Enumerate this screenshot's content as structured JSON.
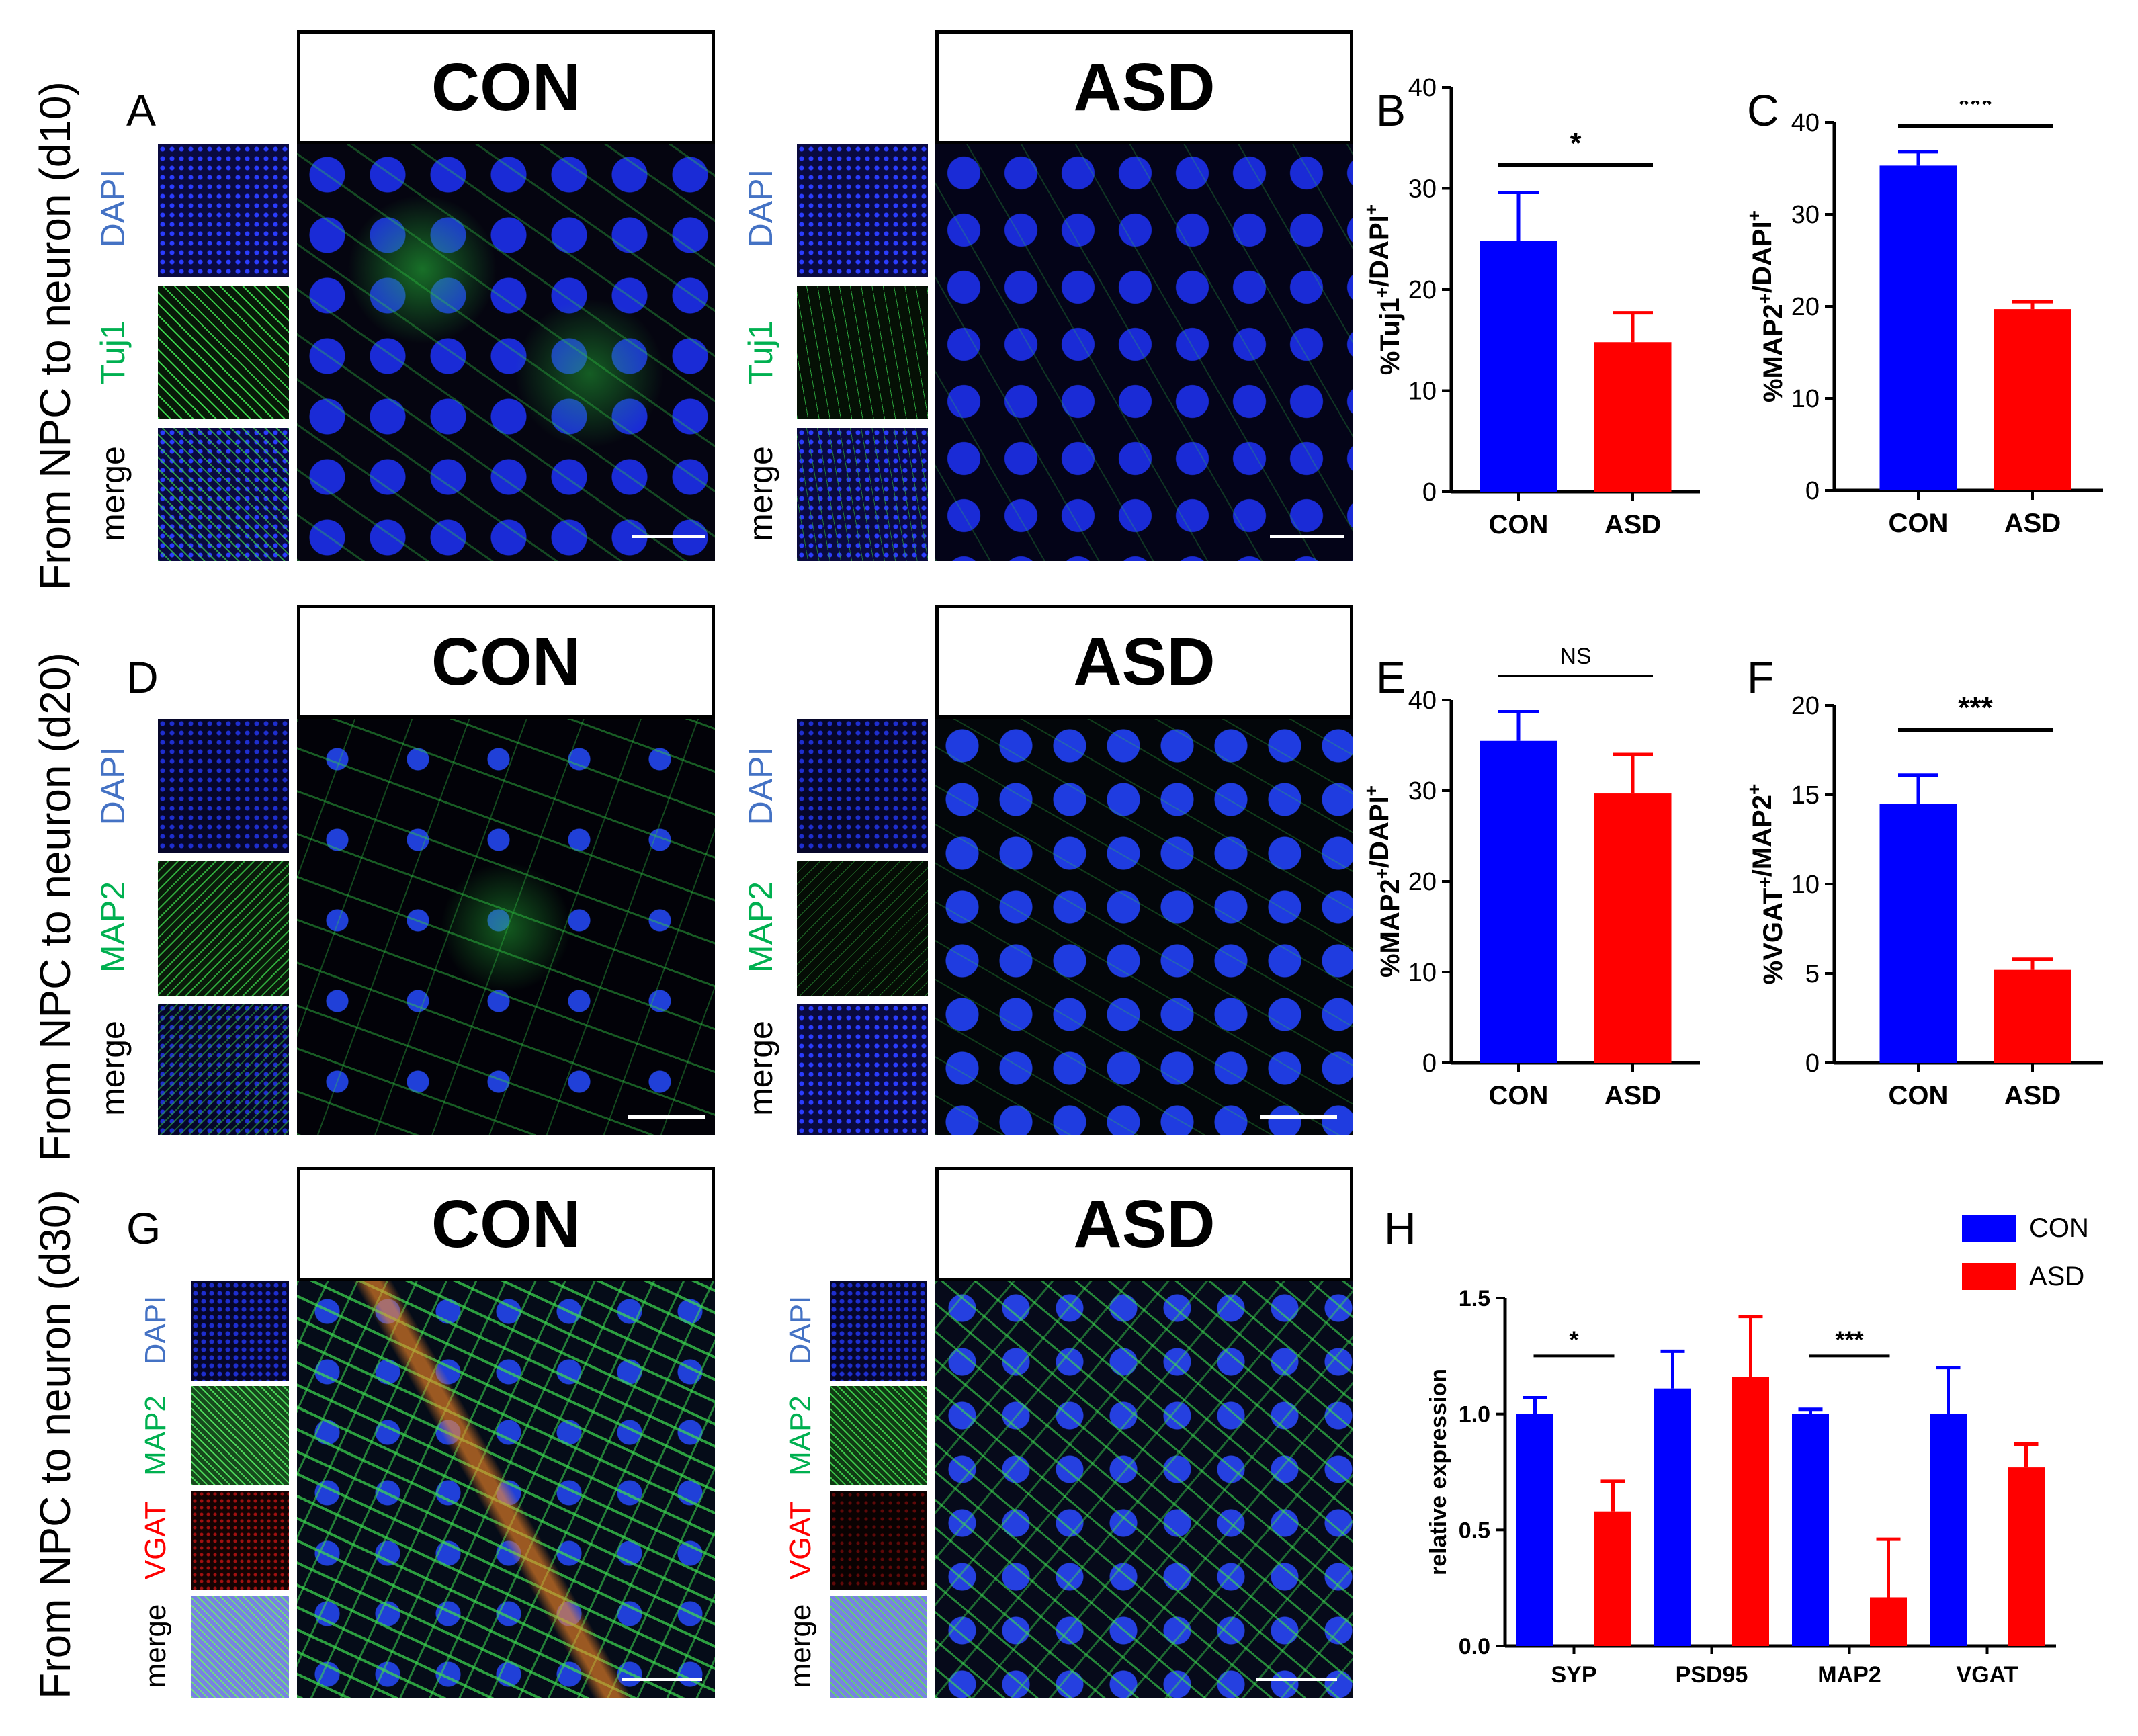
{
  "row_labels": [
    "From NPC to neuron (d10)",
    "From NPC to neuron (d20)",
    "From NPC to neuron (d30)"
  ],
  "panel_letters": [
    "A",
    "B",
    "C",
    "D",
    "E",
    "F",
    "G",
    "H"
  ],
  "conditions": [
    "CON",
    "ASD"
  ],
  "channels": {
    "row1": [
      "DAPI",
      "Tuj1",
      "merge"
    ],
    "row2": [
      "DAPI",
      "MAP2",
      "merge"
    ],
    "row3": [
      "DAPI",
      "MAP2",
      "VGAT",
      "merge"
    ]
  },
  "colors": {
    "con": "#0000ff",
    "asd": "#ff0000",
    "dapi": "#4472c4",
    "green": "#00b050",
    "vgat": "#ff0000"
  },
  "chart_data": [
    {
      "panel": "B",
      "type": "bar",
      "categories": [
        "CON",
        "ASD"
      ],
      "values": [
        24.8,
        14.8
      ],
      "errors": [
        4.8,
        2.9
      ],
      "ylabel": "%Tuj1+/DAPI+",
      "ylim": [
        0,
        40
      ],
      "yticks": [
        0,
        10,
        20,
        30,
        40
      ],
      "significance": "*"
    },
    {
      "panel": "C",
      "type": "bar",
      "categories": [
        "CON",
        "ASD"
      ],
      "values": [
        35.3,
        19.7
      ],
      "errors": [
        1.5,
        0.8
      ],
      "ylabel": "%MAP2+/DAPI+",
      "ylim": [
        0,
        40
      ],
      "yticks": [
        0,
        10,
        20,
        30,
        40
      ],
      "significance": "***"
    },
    {
      "panel": "E",
      "type": "bar",
      "categories": [
        "CON",
        "ASD"
      ],
      "values": [
        35.5,
        29.7
      ],
      "errors": [
        3.2,
        4.3
      ],
      "ylabel": "%MAP2+/DAPI+",
      "ylim": [
        0,
        40
      ],
      "yticks": [
        0,
        10,
        20,
        30,
        40
      ],
      "significance": "NS"
    },
    {
      "panel": "F",
      "type": "bar",
      "categories": [
        "CON",
        "ASD"
      ],
      "values": [
        14.5,
        5.2
      ],
      "errors": [
        1.6,
        0.6
      ],
      "ylabel": "%VGAT+/MAP2+",
      "ylim": [
        0,
        20
      ],
      "yticks": [
        0,
        5,
        10,
        15,
        20
      ],
      "significance": "***"
    },
    {
      "panel": "H",
      "type": "bar",
      "categories": [
        "SYP",
        "PSD95",
        "MAP2",
        "VGAT"
      ],
      "series": [
        {
          "name": "CON",
          "values": [
            1.0,
            1.11,
            1.0,
            1.0
          ],
          "errors": [
            0.07,
            0.16,
            0.02,
            0.2
          ]
        },
        {
          "name": "ASD",
          "values": [
            0.58,
            1.16,
            0.21,
            0.77
          ],
          "errors": [
            0.13,
            0.26,
            0.25,
            0.1
          ]
        }
      ],
      "ylabel": "relative expression",
      "ylim": [
        0,
        1.5
      ],
      "yticks": [
        "0.0",
        "0.5",
        "1.0",
        "1.5"
      ],
      "significance": [
        "*",
        "",
        "***",
        ""
      ],
      "legend": "top-right"
    }
  ]
}
